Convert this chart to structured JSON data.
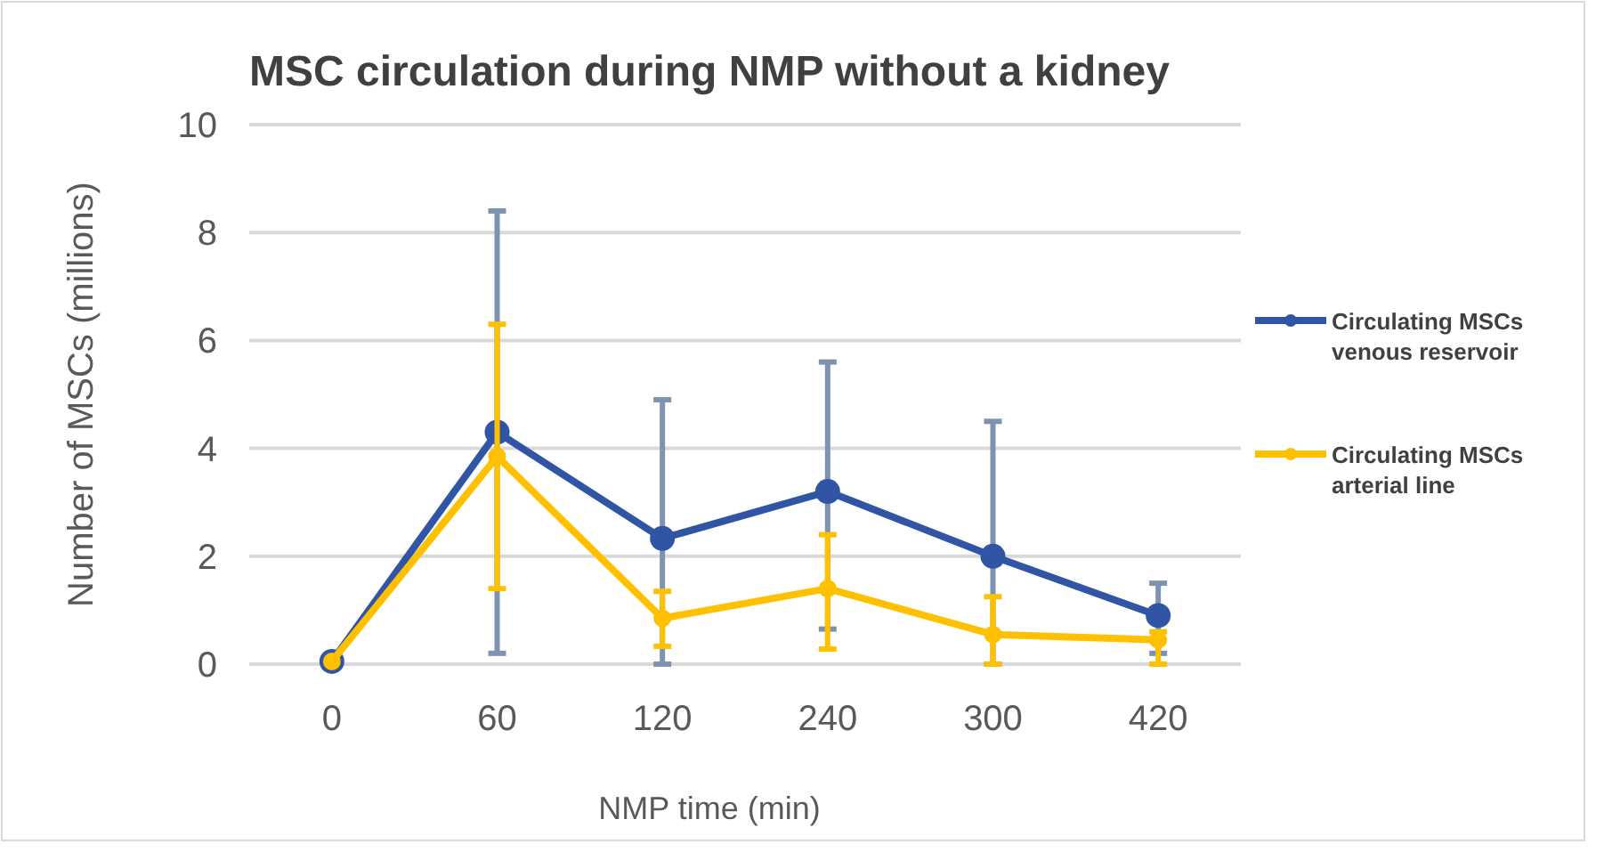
{
  "chart_data": {
    "type": "line",
    "title": "MSC circulation during NMP without a kidney",
    "xlabel": "NMP time (min)",
    "ylabel": "Number of MSCs (millions)",
    "categories": [
      "0",
      "60",
      "120",
      "240",
      "300",
      "420"
    ],
    "ylim": [
      0,
      10
    ],
    "yticks": [
      0,
      2,
      4,
      6,
      8,
      10
    ],
    "grid": "y",
    "legend": "right",
    "marker": "circle",
    "line_style": "solid",
    "series": [
      {
        "name": "Circulating MSCs venous reservoir",
        "color": "#2f55a4",
        "values": [
          0.05,
          4.3,
          2.33,
          3.2,
          2.0,
          0.9
        ],
        "errors": [
          null,
          [
            0.2,
            8.4
          ],
          [
            0,
            4.9
          ],
          [
            0.65,
            5.6
          ],
          [
            0,
            4.5
          ],
          [
            0.2,
            1.5
          ]
        ]
      },
      {
        "name": "Circulating MSCs arterial line",
        "color": "#ffc000",
        "values": [
          0.05,
          3.85,
          0.85,
          1.4,
          0.55,
          0.45
        ],
        "errors": [
          null,
          [
            1.4,
            6.3
          ],
          [
            0.33,
            1.35
          ],
          [
            0.28,
            2.4
          ],
          [
            0,
            1.25
          ],
          [
            0,
            0.6
          ]
        ]
      }
    ]
  }
}
